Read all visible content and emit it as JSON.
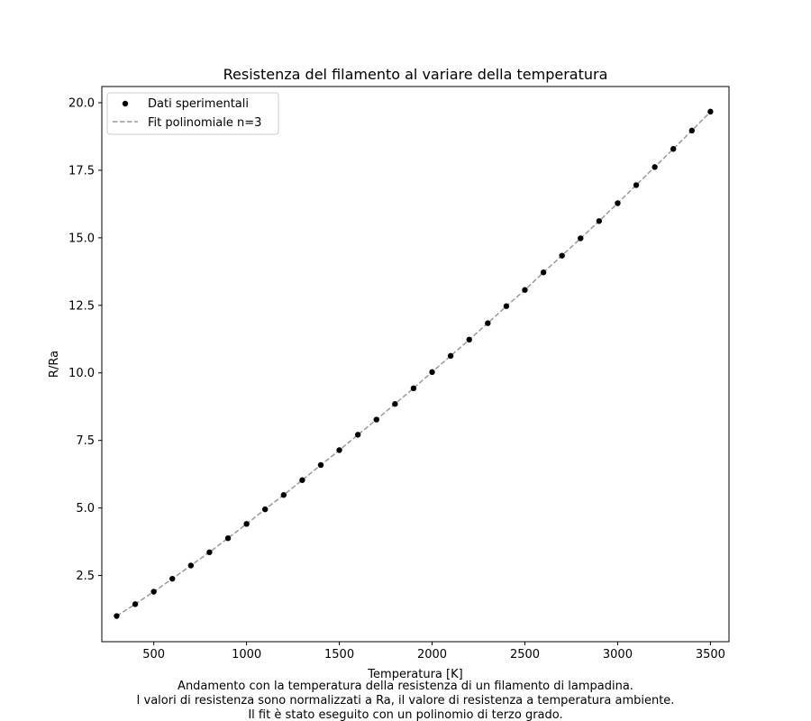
{
  "chart_data": {
    "type": "scatter",
    "title": "Resistenza del filamento al variare della temperatura",
    "xlabel": "Temperatura [K]",
    "ylabel": "R/Ra",
    "xlim": [
      220,
      3600
    ],
    "ylim": [
      0.05,
      20.6
    ],
    "xticks": [
      500,
      1000,
      1500,
      2000,
      2500,
      3000,
      3500
    ],
    "xtick_labels": [
      "500",
      "1000",
      "1500",
      "2000",
      "2500",
      "3000",
      "3500"
    ],
    "yticks": [
      2.5,
      5.0,
      7.5,
      10.0,
      12.5,
      15.0,
      17.5,
      20.0
    ],
    "ytick_labels": [
      "2.5",
      "5.0",
      "7.5",
      "10.0",
      "12.5",
      "15.0",
      "17.5",
      "20.0"
    ],
    "grid": false,
    "legend_position": "top-left",
    "series": [
      {
        "name": "Dati sperimentali",
        "kind": "scatter",
        "color": "#000000",
        "x": [
          300,
          400,
          500,
          600,
          700,
          800,
          900,
          1000,
          1100,
          1200,
          1300,
          1400,
          1500,
          1600,
          1700,
          1800,
          1900,
          2000,
          2100,
          2200,
          2300,
          2400,
          2500,
          2600,
          2700,
          2800,
          2900,
          3000,
          3100,
          3200,
          3300,
          3400,
          3500
        ],
        "y": [
          1.0,
          1.44,
          1.9,
          2.38,
          2.87,
          3.36,
          3.88,
          4.41,
          4.95,
          5.48,
          6.03,
          6.59,
          7.14,
          7.71,
          8.27,
          8.85,
          9.43,
          10.03,
          10.63,
          11.23,
          11.84,
          12.47,
          13.07,
          13.72,
          14.34,
          14.98,
          15.62,
          16.28,
          16.95,
          17.62,
          18.29,
          18.97,
          19.67
        ]
      },
      {
        "name": "Fit polinomiale n=3",
        "kind": "line",
        "style": "dashed",
        "color": "#999999",
        "x": [
          300,
          400,
          500,
          600,
          700,
          800,
          900,
          1000,
          1100,
          1200,
          1300,
          1400,
          1500,
          1600,
          1700,
          1800,
          1900,
          2000,
          2100,
          2200,
          2300,
          2400,
          2500,
          2600,
          2700,
          2800,
          2900,
          3000,
          3100,
          3200,
          3300,
          3400,
          3500
        ],
        "y": [
          1.0,
          1.44,
          1.9,
          2.38,
          2.87,
          3.36,
          3.88,
          4.41,
          4.95,
          5.48,
          6.03,
          6.59,
          7.14,
          7.71,
          8.27,
          8.85,
          9.43,
          10.03,
          10.63,
          11.23,
          11.84,
          12.47,
          13.07,
          13.72,
          14.34,
          14.98,
          15.62,
          16.28,
          16.95,
          17.62,
          18.29,
          18.97,
          19.67
        ]
      }
    ]
  },
  "caption": {
    "line1": "Andamento con la temperatura della resistenza di un filamento di lampadina.",
    "line2": "I valori di resistenza sono normalizzati a Ra, il valore di resistenza a temperatura ambiente.",
    "line3": "Il fit è stato eseguito con un polinomio di terzo grado."
  }
}
